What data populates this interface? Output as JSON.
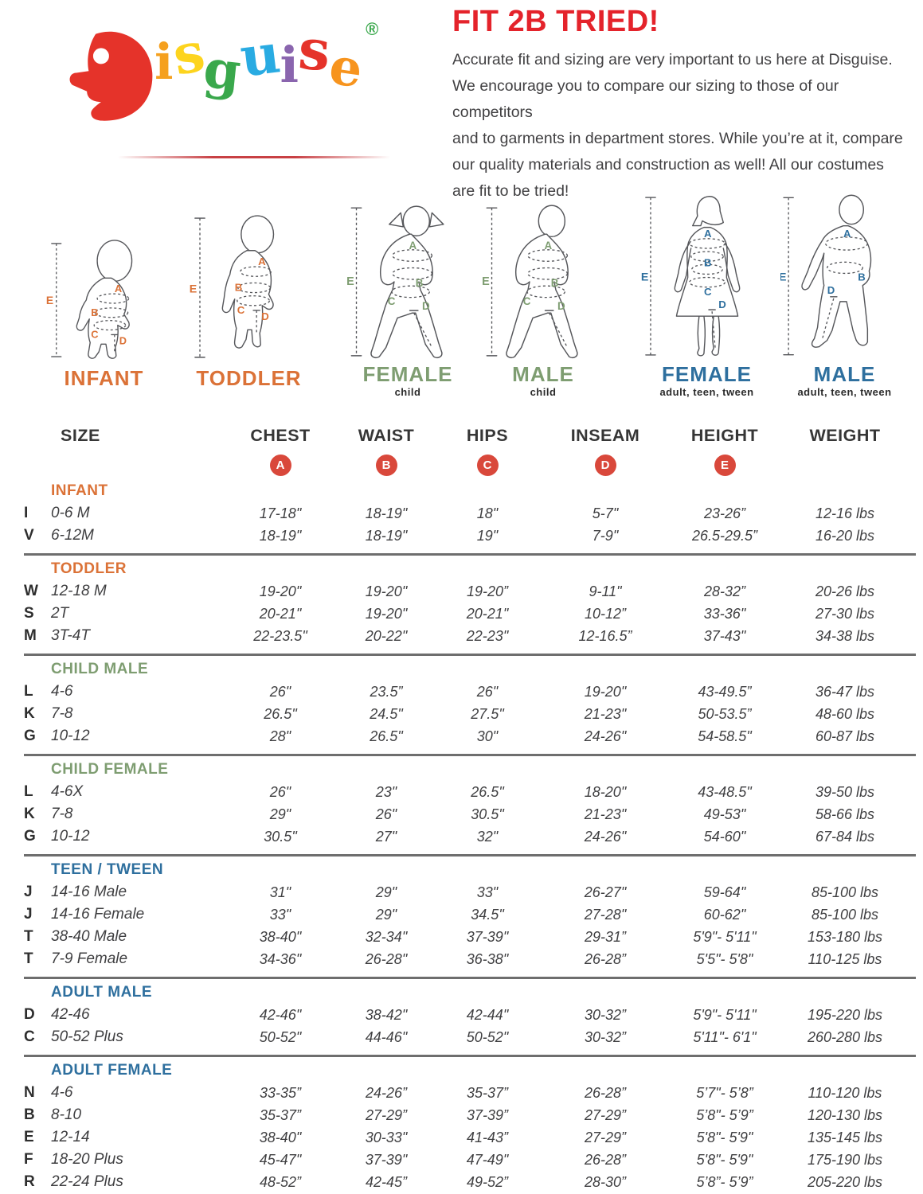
{
  "logo": {
    "word": "Disguise",
    "letters": [
      {
        "ch": "D",
        "color": "#e5332a"
      },
      {
        "ch": "i",
        "color": "#f5a01e"
      },
      {
        "ch": "s",
        "color": "#fdd41e"
      },
      {
        "ch": "g",
        "color": "#3aa84c"
      },
      {
        "ch": "u",
        "color": "#29abe2"
      },
      {
        "ch": "i",
        "color": "#8a65ae"
      },
      {
        "ch": "s",
        "color": "#e5332a"
      },
      {
        "ch": "e",
        "color": "#f7941e"
      }
    ],
    "registered": "®",
    "registered_color": "#3aa84c"
  },
  "intro": {
    "title": "FIT 2B TRIED!",
    "lines": [
      "Accurate fit and sizing are very important to us here at Disguise.",
      "We encourage you to compare our sizing to those of our competitors",
      "and to garments in department stores. While you’re at it, compare",
      "our quality materials and construction as well! All our costumes",
      "are fit to be tried!"
    ]
  },
  "measurement_letters": [
    "A",
    "B",
    "C",
    "D",
    "E"
  ],
  "figures": [
    {
      "name": "INFANT",
      "subtitle": "",
      "color": "#db7237"
    },
    {
      "name": "TODDLER",
      "subtitle": "",
      "color": "#db7237"
    },
    {
      "name": "FEMALE",
      "subtitle": "child",
      "color": "#7e9d71"
    },
    {
      "name": "MALE",
      "subtitle": "child",
      "color": "#7e9d71"
    },
    {
      "name": "FEMALE",
      "subtitle": "adult, teen, tween",
      "color": "#2e6f9e"
    },
    {
      "name": "MALE",
      "subtitle": "adult, teen, tween",
      "color": "#2e6f9e"
    }
  ],
  "table": {
    "columns": [
      "SIZE",
      "CHEST",
      "WAIST",
      "HIPS",
      "INSEAM",
      "HEIGHT",
      "WEIGHT"
    ],
    "markers": [
      "A",
      "B",
      "C",
      "D",
      "E"
    ],
    "marker_color": "#d9483b",
    "sections": [
      {
        "heading": "INFANT",
        "color": "#db7237",
        "rows": [
          [
            "I",
            "0-6 M",
            "17-18\"",
            "18-19\"",
            "18\"",
            "5-7\"",
            "23-26”",
            "12-16 lbs"
          ],
          [
            "V",
            "6-12M",
            "18-19\"",
            "18-19\"",
            "19\"",
            "7-9\"",
            "26.5-29.5”",
            "16-20 lbs"
          ]
        ]
      },
      {
        "heading": "TODDLER",
        "color": "#db7237",
        "rows": [
          [
            "W",
            "12-18 M",
            "19-20\"",
            "19-20\"",
            "19-20”",
            "9-11\"",
            "28-32”",
            "20-26 lbs"
          ],
          [
            "S",
            "2T",
            "20-21\"",
            "19-20\"",
            "20-21\"",
            "10-12”",
            "33-36\"",
            "27-30 lbs"
          ],
          [
            "M",
            "3T-4T",
            "22-23.5\"",
            "20-22\"",
            "22-23\"",
            "12-16.5”",
            "37-43\"",
            "34-38 lbs"
          ]
        ]
      },
      {
        "heading": "CHILD MALE",
        "color": "#7e9d71",
        "rows": [
          [
            "L",
            "4-6",
            "26\"",
            "23.5”",
            "26\"",
            "19-20\"",
            "43-49.5”",
            "36-47 lbs"
          ],
          [
            "K",
            "7-8",
            "26.5\"",
            "24.5\"",
            "27.5\"",
            "21-23\"",
            "50-53.5”",
            "48-60 lbs"
          ],
          [
            "G",
            "10-12",
            "28\"",
            "26.5\"",
            "30\"",
            "24-26\"",
            "54-58.5\"",
            "60-87 lbs"
          ]
        ]
      },
      {
        "heading": "CHILD FEMALE",
        "color": "#7e9d71",
        "rows": [
          [
            "L",
            "4-6X",
            "26\"",
            "23\"",
            "26.5\"",
            "18-20\"",
            "43-48.5\"",
            "39-50 lbs"
          ],
          [
            "K",
            "7-8",
            "29\"",
            "26\"",
            "30.5\"",
            "21-23\"",
            "49-53\"",
            "58-66 lbs"
          ],
          [
            "G",
            "10-12",
            "30.5\"",
            "27\"",
            "32\"",
            "24-26\"",
            "54-60\"",
            "67-84 lbs"
          ]
        ]
      },
      {
        "heading": "TEEN / TWEEN",
        "color": "#2e6f9e",
        "rows": [
          [
            "J",
            "14-16 Male",
            "31\"",
            "29\"",
            "33\"",
            "26-27\"",
            "59-64\"",
            "85-100 lbs"
          ],
          [
            "J",
            "14-16 Female",
            "33\"",
            "29\"",
            "34.5\"",
            "27-28\"",
            "60-62\"",
            "85-100 lbs"
          ],
          [
            "T",
            "38-40 Male",
            "38-40\"",
            "32-34\"",
            "37-39\"",
            "29-31”",
            "5'9\"- 5'11\"",
            "153-180 lbs"
          ],
          [
            "T",
            "7-9 Female",
            "34-36\"",
            "26-28\"",
            "36-38\"",
            "26-28”",
            "5'5\"- 5'8\"",
            "110-125 lbs"
          ]
        ]
      },
      {
        "heading": "ADULT MALE",
        "color": "#2e6f9e",
        "rows": [
          [
            "D",
            "42-46",
            "42-46\"",
            "38-42\"",
            "42-44\"",
            "30-32”",
            "5'9\"- 5'11\"",
            "195-220 lbs"
          ],
          [
            "C",
            "50-52 Plus",
            "50-52\"",
            "44-46\"",
            "50-52\"",
            "30-32”",
            "5'11\"- 6'1\"",
            "260-280 lbs"
          ]
        ]
      },
      {
        "heading": "ADULT FEMALE",
        "color": "#2e6f9e",
        "rows": [
          [
            "N",
            "4-6",
            "33-35”",
            "24-26”",
            "35-37”",
            "26-28”",
            "5’7\"- 5’8”",
            "110-120 lbs"
          ],
          [
            "B",
            "8-10",
            "35-37”",
            "27-29”",
            "37-39”",
            "27-29”",
            "5’8\"- 5’9”",
            "120-130 lbs"
          ],
          [
            "E",
            "12-14",
            "38-40\"",
            "30-33\"",
            "41-43”",
            "27-29”",
            "5'8\"- 5'9\"",
            "135-145 lbs"
          ],
          [
            "F",
            "18-20 Plus",
            "45-47\"",
            "37-39\"",
            "47-49\"",
            "26-28”",
            "5'8\"- 5'9\"",
            "175-190 lbs"
          ],
          [
            "R",
            "22-24 Plus",
            "48-52”",
            "42-45”",
            "49-52”",
            "28-30”",
            "5’8”- 5’9”",
            "205-220 lbs"
          ]
        ]
      }
    ]
  }
}
